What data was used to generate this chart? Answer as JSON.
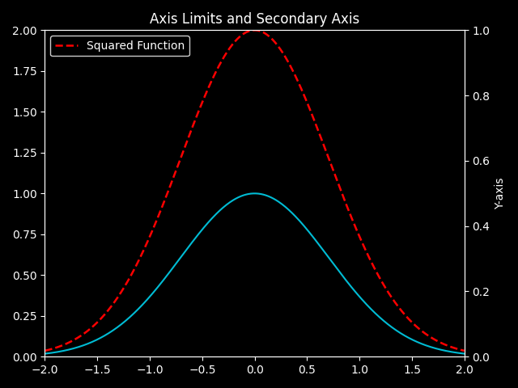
{
  "title": "Axis Limits and Secondary Axis",
  "background_color": "#000000",
  "text_color": "#ffffff",
  "xlim": [
    -2.0,
    2.0
  ],
  "ylim_primary": [
    0.0,
    2.0
  ],
  "ylim_secondary": [
    0.0,
    1.0
  ],
  "secondary_ylabel": "Y-axis",
  "legend_label_secondary": "Squared Function",
  "primary_color": "#00bcd4",
  "secondary_color": "#ff0000",
  "primary_linewidth": 1.5,
  "secondary_linewidth": 1.8,
  "secondary_linestyle": "--",
  "n_points": 500,
  "figsize": [
    6.4,
    4.8
  ],
  "dpi": 100
}
